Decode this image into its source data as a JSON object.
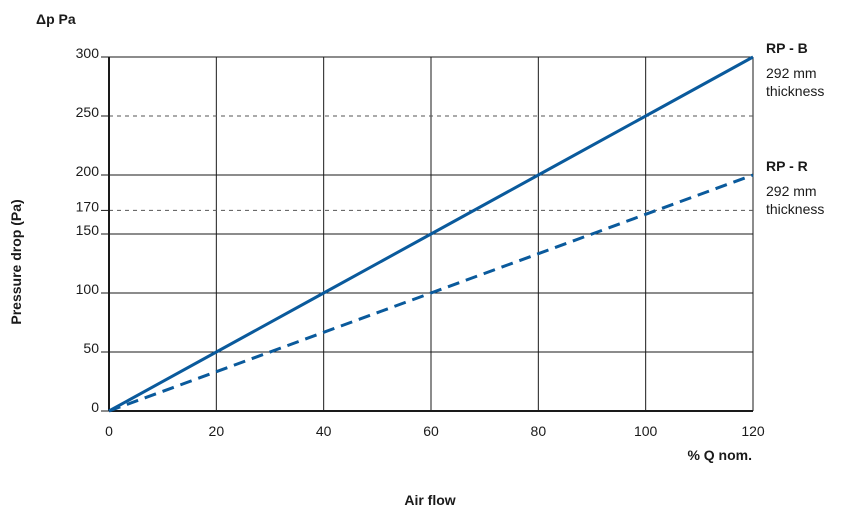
{
  "chart_data": {
    "type": "line",
    "title": "",
    "ylabel_top": "Δp Pa",
    "ylabel": "Pressure drop (Pa)",
    "xlabel_unit": "% Q nom.",
    "xlabel": "Air flow",
    "xlim": [
      0,
      120
    ],
    "ylim": [
      0,
      300
    ],
    "x_ticks": [
      "0",
      "20",
      "40",
      "60",
      "80",
      "100",
      "120"
    ],
    "y_ticks": [
      "0",
      "50",
      "100",
      "150",
      "200",
      "250",
      "300"
    ],
    "y_extra_ticks": [
      "170"
    ],
    "dashed_reference_lines": [
      250,
      170
    ],
    "grid": true,
    "series": [
      {
        "name": "RP - B",
        "note": [
          "292 mm",
          "thickness"
        ],
        "style": "solid",
        "color": "#0a5a9c",
        "x": [
          0,
          20,
          40,
          60,
          80,
          100,
          120
        ],
        "y": [
          0,
          50,
          100,
          150,
          200,
          250,
          300
        ]
      },
      {
        "name": "RP - R",
        "note": [
          "292 mm",
          "thickness"
        ],
        "style": "dashed",
        "color": "#0a5a9c",
        "x": [
          0,
          20,
          40,
          60,
          80,
          100,
          120
        ],
        "y": [
          0,
          33.3,
          66.7,
          100,
          133.3,
          166.7,
          200
        ]
      }
    ]
  }
}
